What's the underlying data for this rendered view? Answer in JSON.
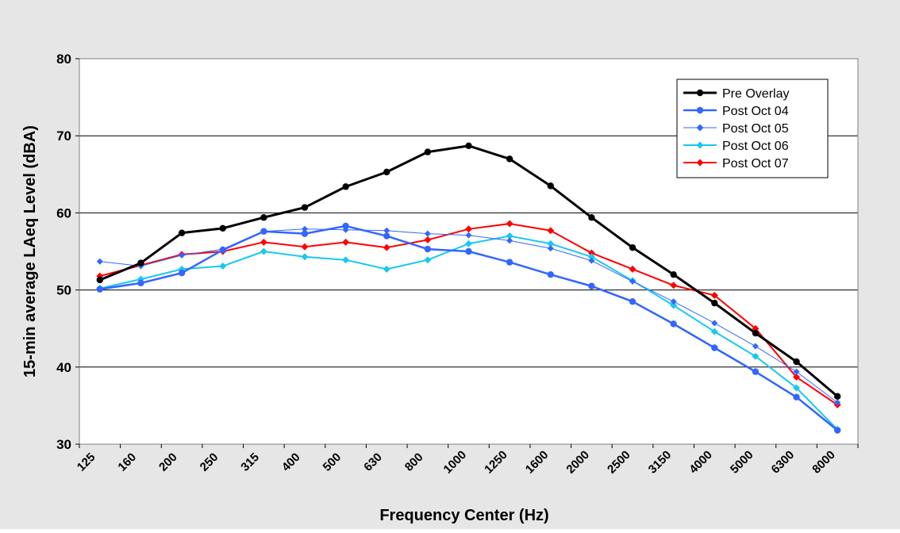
{
  "chart_data": {
    "type": "line",
    "xlabel": "Frequency Center (Hz)",
    "ylabel": "15-min average LAeq Level (dBA)",
    "categories": [
      "125",
      "160",
      "200",
      "250",
      "315",
      "400",
      "500",
      "630",
      "800",
      "1000",
      "1250",
      "1600",
      "2000",
      "2500",
      "3150",
      "4000",
      "5000",
      "6300",
      "8000"
    ],
    "ylim": [
      30,
      80
    ],
    "yticks": [
      30,
      40,
      50,
      60,
      70,
      80
    ],
    "grid": true,
    "legend_position": "top-right",
    "series": [
      {
        "name": "Pre Overlay",
        "color": "#000000",
        "marker": "circle",
        "width": 3,
        "values": [
          51.3,
          53.5,
          57.4,
          58.0,
          59.4,
          60.7,
          63.4,
          65.3,
          67.9,
          68.7,
          67.0,
          63.5,
          59.4,
          55.5,
          52.0,
          48.3,
          44.4,
          40.7,
          36.2
        ]
      },
      {
        "name": "Post Oct 04",
        "color": "#3366ff",
        "marker": "circle",
        "width": 2.5,
        "values": [
          50.1,
          50.9,
          52.2,
          55.2,
          57.6,
          57.3,
          58.3,
          57.0,
          55.3,
          55.0,
          53.6,
          52.0,
          50.5,
          48.5,
          45.6,
          42.5,
          39.4,
          36.1,
          31.8
        ]
      },
      {
        "name": "Post Oct 05",
        "color": "#3366ff",
        "marker": "diamond",
        "width": 1,
        "values": [
          53.7,
          53.1,
          54.5,
          55.3,
          57.6,
          57.9,
          57.8,
          57.7,
          57.3,
          57.1,
          56.4,
          55.4,
          53.8,
          51.1,
          48.5,
          45.7,
          42.7,
          39.4,
          35.4
        ]
      },
      {
        "name": "Post Oct 06",
        "color": "#19c8f0",
        "marker": "diamond",
        "width": 2,
        "values": [
          50.2,
          51.4,
          52.7,
          53.1,
          55.0,
          54.3,
          53.9,
          52.7,
          53.9,
          56.0,
          57.0,
          56.0,
          54.3,
          51.2,
          48.0,
          44.6,
          41.4,
          37.3,
          31.9
        ]
      },
      {
        "name": "Post Oct 07",
        "color": "#ff0000",
        "marker": "diamond",
        "width": 2,
        "values": [
          51.8,
          53.2,
          54.6,
          55.0,
          56.2,
          55.6,
          56.2,
          55.5,
          56.5,
          57.9,
          58.6,
          57.7,
          54.8,
          52.7,
          50.6,
          49.3,
          45.0,
          38.7,
          35.1
        ]
      }
    ]
  }
}
